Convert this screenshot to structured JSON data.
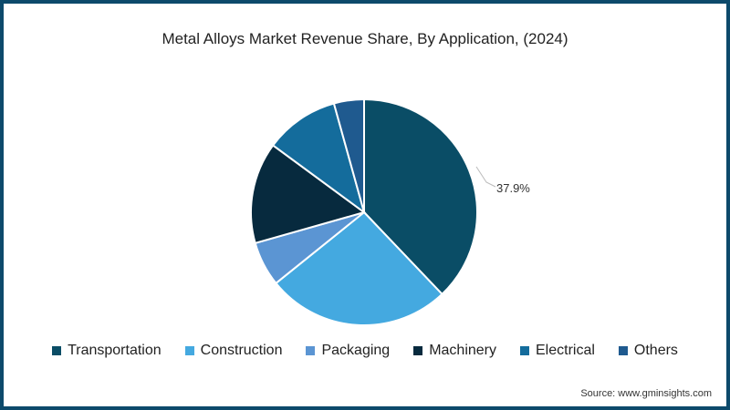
{
  "title": "Metal Alloys Market Revenue Share, By Application,  (2024)",
  "source": "Source: www.gminsights.com",
  "chart_data": {
    "type": "pie",
    "title": "Metal Alloys Market Revenue Share, By Application,  (2024)",
    "categories": [
      "Transportation",
      "Construction",
      "Packaging",
      "Machinery",
      "Electrical",
      "Others"
    ],
    "values": [
      37.9,
      26.3,
      6.4,
      14.5,
      10.6,
      4.3
    ],
    "colors": [
      "#0a4d66",
      "#44a9e0",
      "#5b95d3",
      "#072a3e",
      "#146c9c",
      "#1f5a8f"
    ],
    "annotations": [
      {
        "category": "Transportation",
        "text": "37.9%"
      }
    ],
    "legend_position": "bottom"
  },
  "legend": [
    {
      "label": "Transportation",
      "color": "#0a4d66"
    },
    {
      "label": "Construction",
      "color": "#44a9e0"
    },
    {
      "label": "Packaging",
      "color": "#5b95d3"
    },
    {
      "label": "Machinery",
      "color": "#072a3e"
    },
    {
      "label": "Electrical",
      "color": "#146c9c"
    },
    {
      "label": "Others",
      "color": "#1f5a8f"
    }
  ],
  "data_label": "37.9%"
}
